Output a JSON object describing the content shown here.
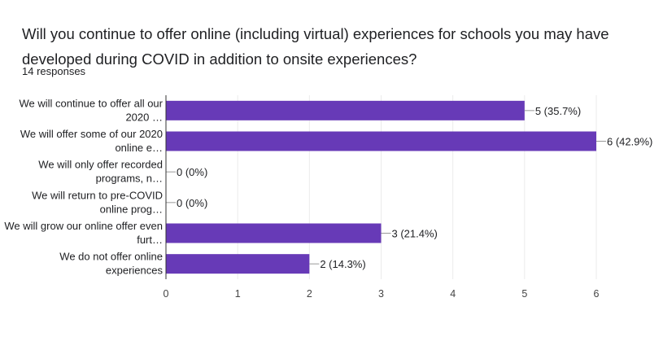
{
  "header": {
    "title": "Will you continue to offer online (including virtual) experiences for schools you may have developed during COVID in addition to onsite experiences?",
    "responses": "14 responses"
  },
  "colors": {
    "bar": "#673ab7",
    "gridline": "#ebebeb",
    "axis": "#333333",
    "text": "#202124"
  },
  "chart_data": {
    "type": "bar",
    "orientation": "horizontal",
    "categories": [
      [
        "We will continue to offer all our",
        "2020 …"
      ],
      [
        "We will offer some of our 2020",
        "online e…"
      ],
      [
        "We will only offer recorded",
        "programs, n…"
      ],
      [
        "We will return to pre-COVID",
        "online prog…"
      ],
      [
        "We will grow our online offer even",
        "furt…"
      ],
      [
        "We do not offer online",
        "experiences"
      ]
    ],
    "values": [
      5,
      6,
      0,
      0,
      3,
      2
    ],
    "data_labels": [
      "5 (35.7%)",
      "6 (42.9%)",
      "0 (0%)",
      "0 (0%)",
      "3 (21.4%)",
      "2 (14.3%)"
    ],
    "xlim": [
      0,
      6
    ],
    "xticks": [
      "0",
      "1",
      "2",
      "3",
      "4",
      "5",
      "6"
    ],
    "grid": true,
    "legend": "none"
  }
}
